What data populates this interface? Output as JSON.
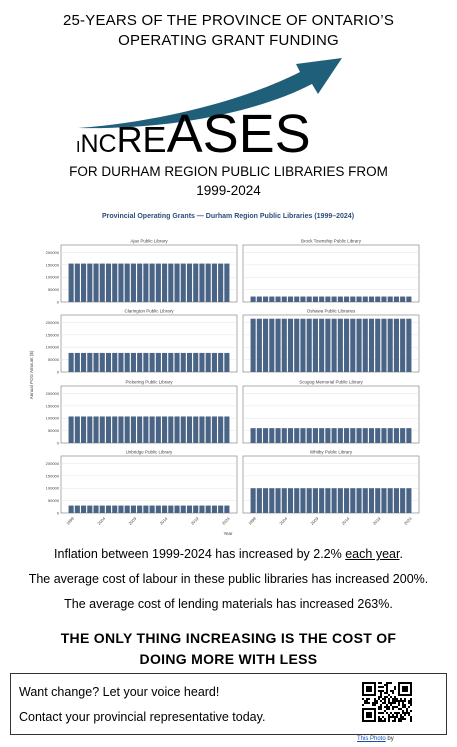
{
  "header": {
    "title_line1": "25-YEARS OF THE PROVINCE OF ONTARIO’S",
    "title_line2": "OPERATING GRANT FUNDING",
    "graphic_word": "INCREASES",
    "arrow_color": "#1f5f7a",
    "subtitle_line1": "FOR DURHAM REGION PUBLIC LIBRARIES FROM",
    "subtitle_line2": "1999-2024"
  },
  "chart_data": {
    "type": "bar",
    "title": "Provincial Operating Grants — Durham Region Public Libraries (1999–2024)",
    "ylabel": "Annual POG Amount ($)",
    "xlabel": "Year",
    "x_ticks": [
      "1999",
      "2004",
      "2009",
      "2014",
      "2019",
      "2024"
    ],
    "y_ticks": [
      "0",
      "50000",
      "100000",
      "150000",
      "200000"
    ],
    "ylim": [
      0,
      230000
    ],
    "bar_color": "#4a6486",
    "categories": [
      "1999",
      "2000",
      "2001",
      "2002",
      "2003",
      "2004",
      "2005",
      "2006",
      "2007",
      "2008",
      "2009",
      "2010",
      "2011",
      "2012",
      "2013",
      "2014",
      "2015",
      "2016",
      "2017",
      "2018",
      "2019",
      "2020",
      "2021",
      "2022",
      "2023",
      "2024"
    ],
    "panels": [
      {
        "name": "Ajax Public Library",
        "value": 155000
      },
      {
        "name": "Brock Township Public Library",
        "value": 22000
      },
      {
        "name": "Clarington Public Library",
        "value": 77000
      },
      {
        "name": "Oshawa Public Libraries",
        "value": 215000
      },
      {
        "name": "Pickering Public Library",
        "value": 107000
      },
      {
        "name": "Scugog Memorial Public Library",
        "value": 60000
      },
      {
        "name": "Uxbridge Public Library",
        "value": 30000
      },
      {
        "name": "Whitby Public Library",
        "value": 100000
      }
    ]
  },
  "body": {
    "inflation_prefix": "Inflation between 1999-2024 has increased by 2.2% ",
    "inflation_link": "each year",
    "inflation_suffix": ".",
    "labour": "The average cost of labour in these public libraries has increased 200%.",
    "materials": "The average cost of lending materials has increased 263%.",
    "bold_line1": "THE ONLY THING INCREASING IS THE COST OF",
    "bold_line2": "DOING MORE WITH LESS"
  },
  "cta": {
    "line1": "Want change? Let your voice heard!",
    "line2": "Contact your provincial representative today."
  },
  "credit": {
    "link": "This Photo",
    "suffix": " by"
  }
}
